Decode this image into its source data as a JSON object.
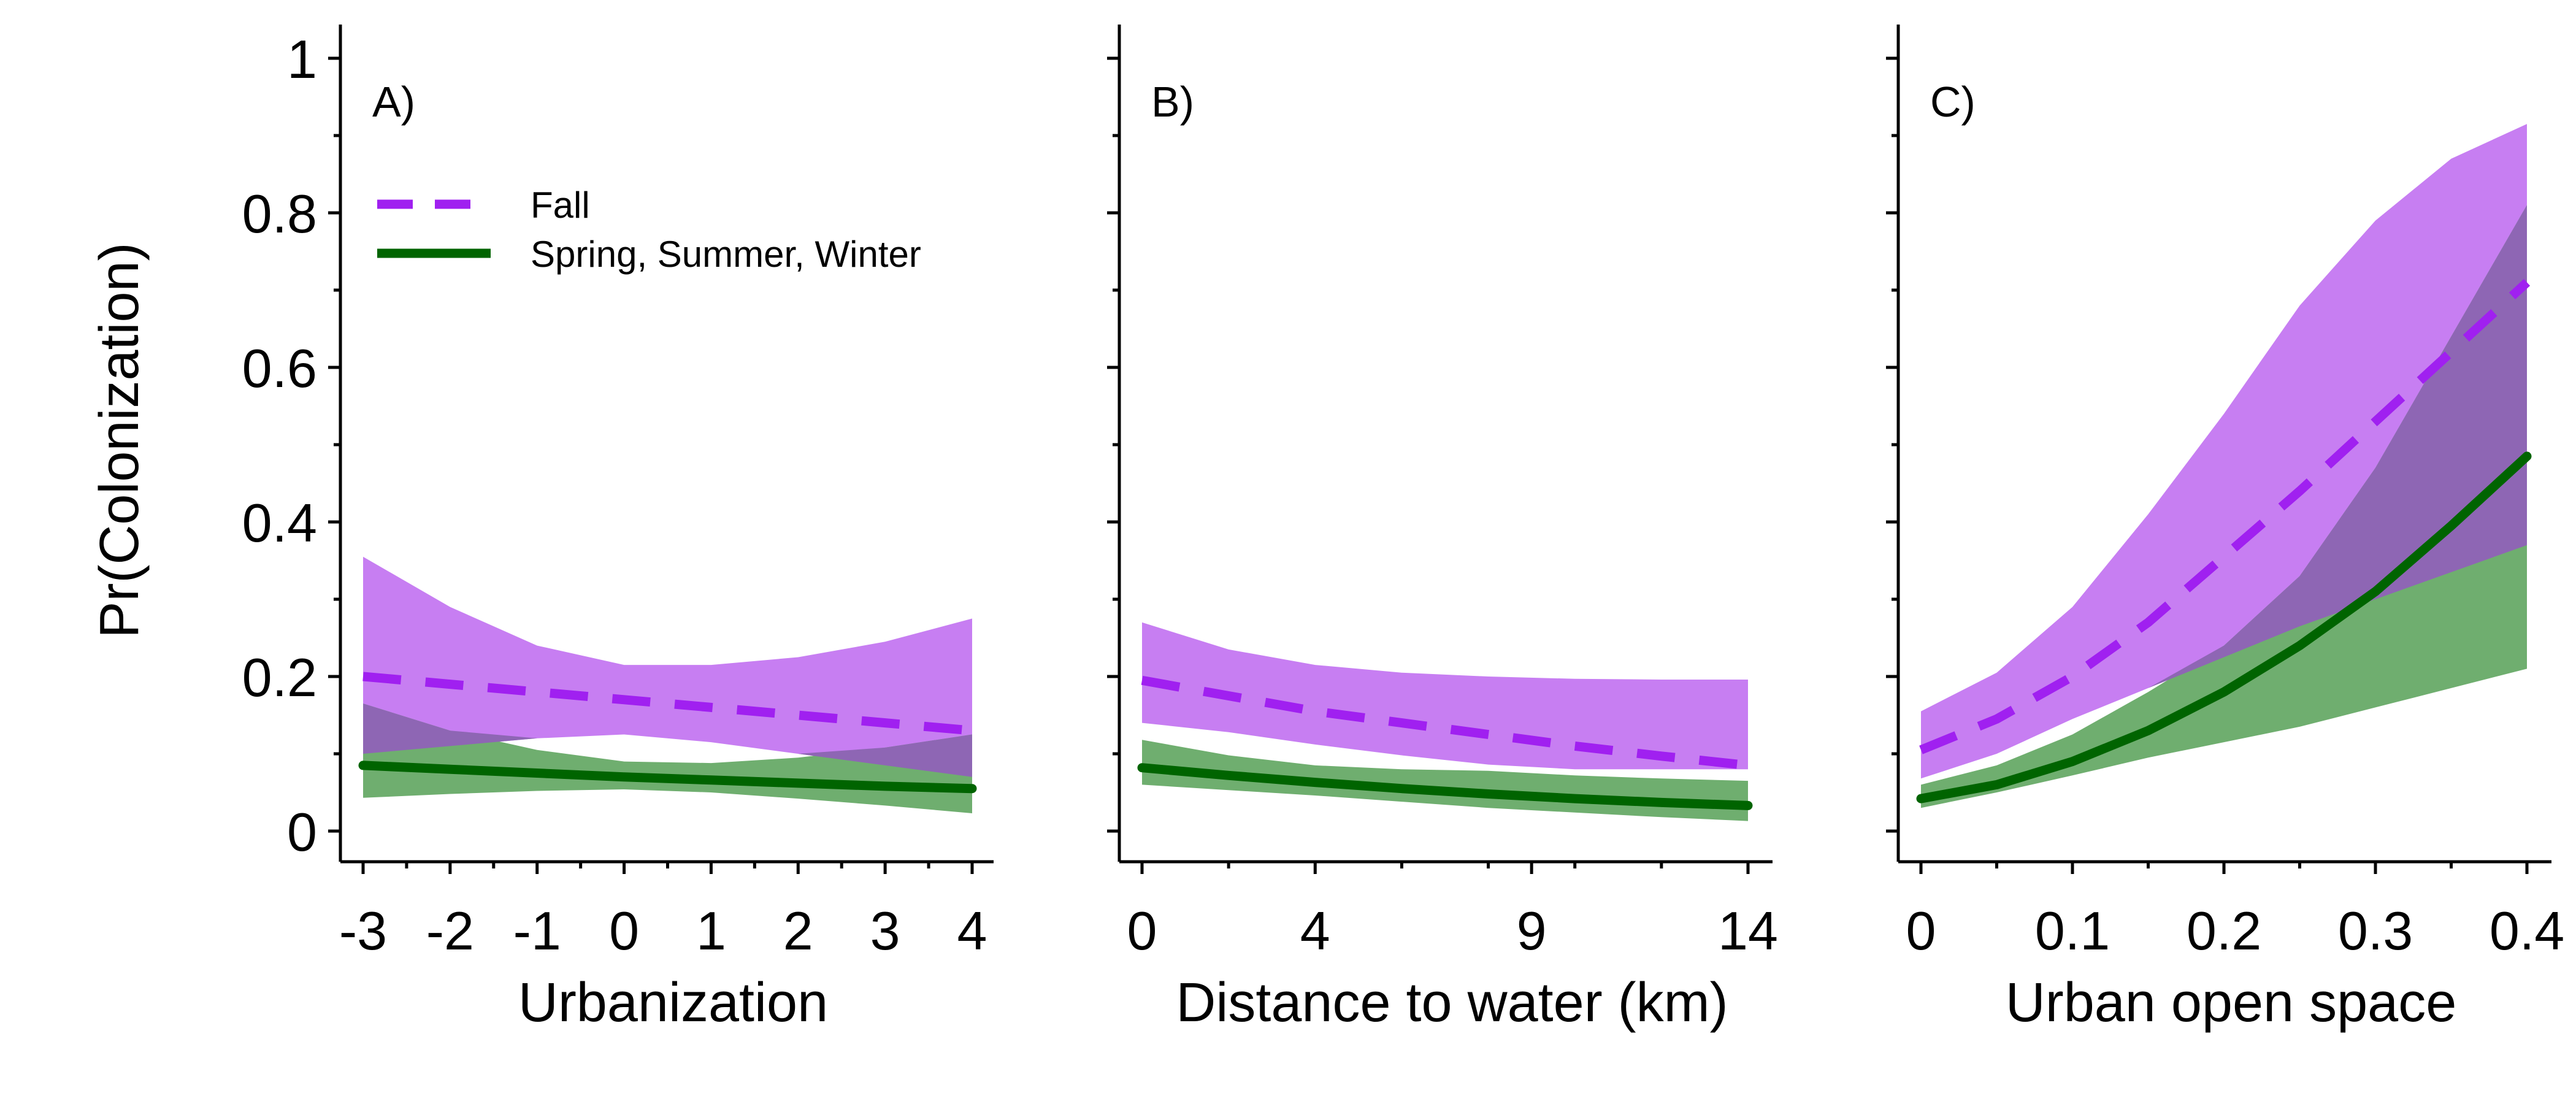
{
  "figure": {
    "ylabel": "Pr(Colonization)"
  },
  "legend": {
    "items": [
      {
        "label": "Fall",
        "color": "#a020f0",
        "dash": true
      },
      {
        "label": "Spring, Summer, Winter",
        "color": "#006400",
        "dash": false
      }
    ]
  },
  "colors": {
    "fall_line": "#a020f0",
    "fall_ci": "#c77ef2",
    "other_line": "#006400",
    "other_ci": "#6fae6f",
    "overlap_ci": "#8e66b4"
  },
  "chart_data": [
    {
      "type": "line",
      "panel": "A)",
      "xlabel": "Urbanization",
      "ylabel": "Pr(Colonization)",
      "xlim": [
        -3,
        4
      ],
      "ylim": [
        0,
        1
      ],
      "xticks": [
        -3,
        -2,
        -1,
        0,
        1,
        2,
        3,
        4
      ],
      "xtick_labels": [
        "-3",
        "-2",
        "-1",
        "0",
        "1",
        "2",
        "3",
        "4"
      ],
      "yticks": [
        0,
        0.2,
        0.4,
        0.6,
        0.8,
        1
      ],
      "ytick_labels": [
        "0",
        "0.2",
        "0.4",
        "0.6",
        "0.8",
        "1"
      ],
      "series": [
        {
          "name": "Fall",
          "x": [
            -3,
            -2,
            -1,
            0,
            1,
            2,
            3,
            4
          ],
          "y": [
            0.2,
            0.19,
            0.18,
            0.17,
            0.16,
            0.15,
            0.14,
            0.13
          ],
          "lower": [
            0.1,
            0.11,
            0.12,
            0.125,
            0.115,
            0.1,
            0.085,
            0.07
          ],
          "upper": [
            0.355,
            0.29,
            0.24,
            0.215,
            0.215,
            0.225,
            0.245,
            0.275
          ]
        },
        {
          "name": "Spring, Summer, Winter",
          "x": [
            -3,
            -2,
            -1,
            0,
            1,
            2,
            3,
            4
          ],
          "y": [
            0.085,
            0.08,
            0.075,
            0.07,
            0.066,
            0.062,
            0.058,
            0.055
          ],
          "lower": [
            0.043,
            0.048,
            0.052,
            0.054,
            0.05,
            0.042,
            0.033,
            0.023
          ],
          "upper": [
            0.165,
            0.13,
            0.105,
            0.09,
            0.088,
            0.095,
            0.108,
            0.125
          ]
        }
      ]
    },
    {
      "type": "line",
      "panel": "B)",
      "xlabel": "Distance to water (km)",
      "ylabel": "",
      "xlim": [
        0,
        14
      ],
      "ylim": [
        0,
        1
      ],
      "xticks": [
        0,
        4,
        9,
        14
      ],
      "xtick_labels": [
        "0",
        "4",
        "9",
        "14"
      ],
      "minor_xticks": [
        2,
        6,
        8,
        10,
        12
      ],
      "yticks": [
        0,
        0.2,
        0.4,
        0.6,
        0.8,
        1
      ],
      "series": [
        {
          "name": "Fall",
          "x": [
            0,
            2,
            4,
            6,
            8,
            10,
            12,
            14
          ],
          "y": [
            0.195,
            0.175,
            0.155,
            0.14,
            0.125,
            0.11,
            0.097,
            0.085
          ],
          "lower": [
            0.14,
            0.128,
            0.112,
            0.098,
            0.086,
            0.08,
            0.08,
            0.08
          ],
          "upper": [
            0.27,
            0.235,
            0.215,
            0.205,
            0.2,
            0.197,
            0.196,
            0.196
          ]
        },
        {
          "name": "Spring, Summer, Winter",
          "x": [
            0,
            2,
            4,
            6,
            8,
            10,
            12,
            14
          ],
          "y": [
            0.082,
            0.072,
            0.063,
            0.055,
            0.048,
            0.042,
            0.037,
            0.033
          ],
          "lower": [
            0.06,
            0.053,
            0.046,
            0.038,
            0.03,
            0.024,
            0.018,
            0.013
          ],
          "upper": [
            0.118,
            0.098,
            0.085,
            0.08,
            0.078,
            0.072,
            0.068,
            0.065
          ]
        }
      ]
    },
    {
      "type": "line",
      "panel": "C)",
      "xlabel": "Urban open space",
      "ylabel": "",
      "xlim": [
        0,
        0.4
      ],
      "ylim": [
        0,
        1
      ],
      "xticks": [
        0,
        0.1,
        0.2,
        0.3,
        0.4
      ],
      "xtick_labels": [
        "0",
        "0.1",
        "0.2",
        "0.3",
        "0.4"
      ],
      "minor_xticks": [
        0.05,
        0.15,
        0.25,
        0.35
      ],
      "yticks": [
        0,
        0.2,
        0.4,
        0.6,
        0.8,
        1
      ],
      "series": [
        {
          "name": "Fall",
          "x": [
            0,
            0.05,
            0.1,
            0.15,
            0.2,
            0.25,
            0.3,
            0.35,
            0.4
          ],
          "y": [
            0.105,
            0.145,
            0.2,
            0.27,
            0.355,
            0.44,
            0.53,
            0.62,
            0.71
          ],
          "lower": [
            0.068,
            0.1,
            0.145,
            0.185,
            0.225,
            0.265,
            0.3,
            0.335,
            0.37
          ],
          "upper": [
            0.155,
            0.205,
            0.29,
            0.41,
            0.54,
            0.68,
            0.79,
            0.87,
            0.915
          ]
        },
        {
          "name": "Spring, Summer, Winter",
          "x": [
            0,
            0.05,
            0.1,
            0.15,
            0.2,
            0.25,
            0.3,
            0.35,
            0.4
          ],
          "y": [
            0.042,
            0.06,
            0.09,
            0.13,
            0.18,
            0.24,
            0.31,
            0.395,
            0.485
          ],
          "lower": [
            0.03,
            0.05,
            0.072,
            0.095,
            0.115,
            0.135,
            0.16,
            0.185,
            0.21
          ],
          "upper": [
            0.06,
            0.085,
            0.125,
            0.18,
            0.24,
            0.33,
            0.47,
            0.64,
            0.81
          ]
        }
      ]
    }
  ]
}
